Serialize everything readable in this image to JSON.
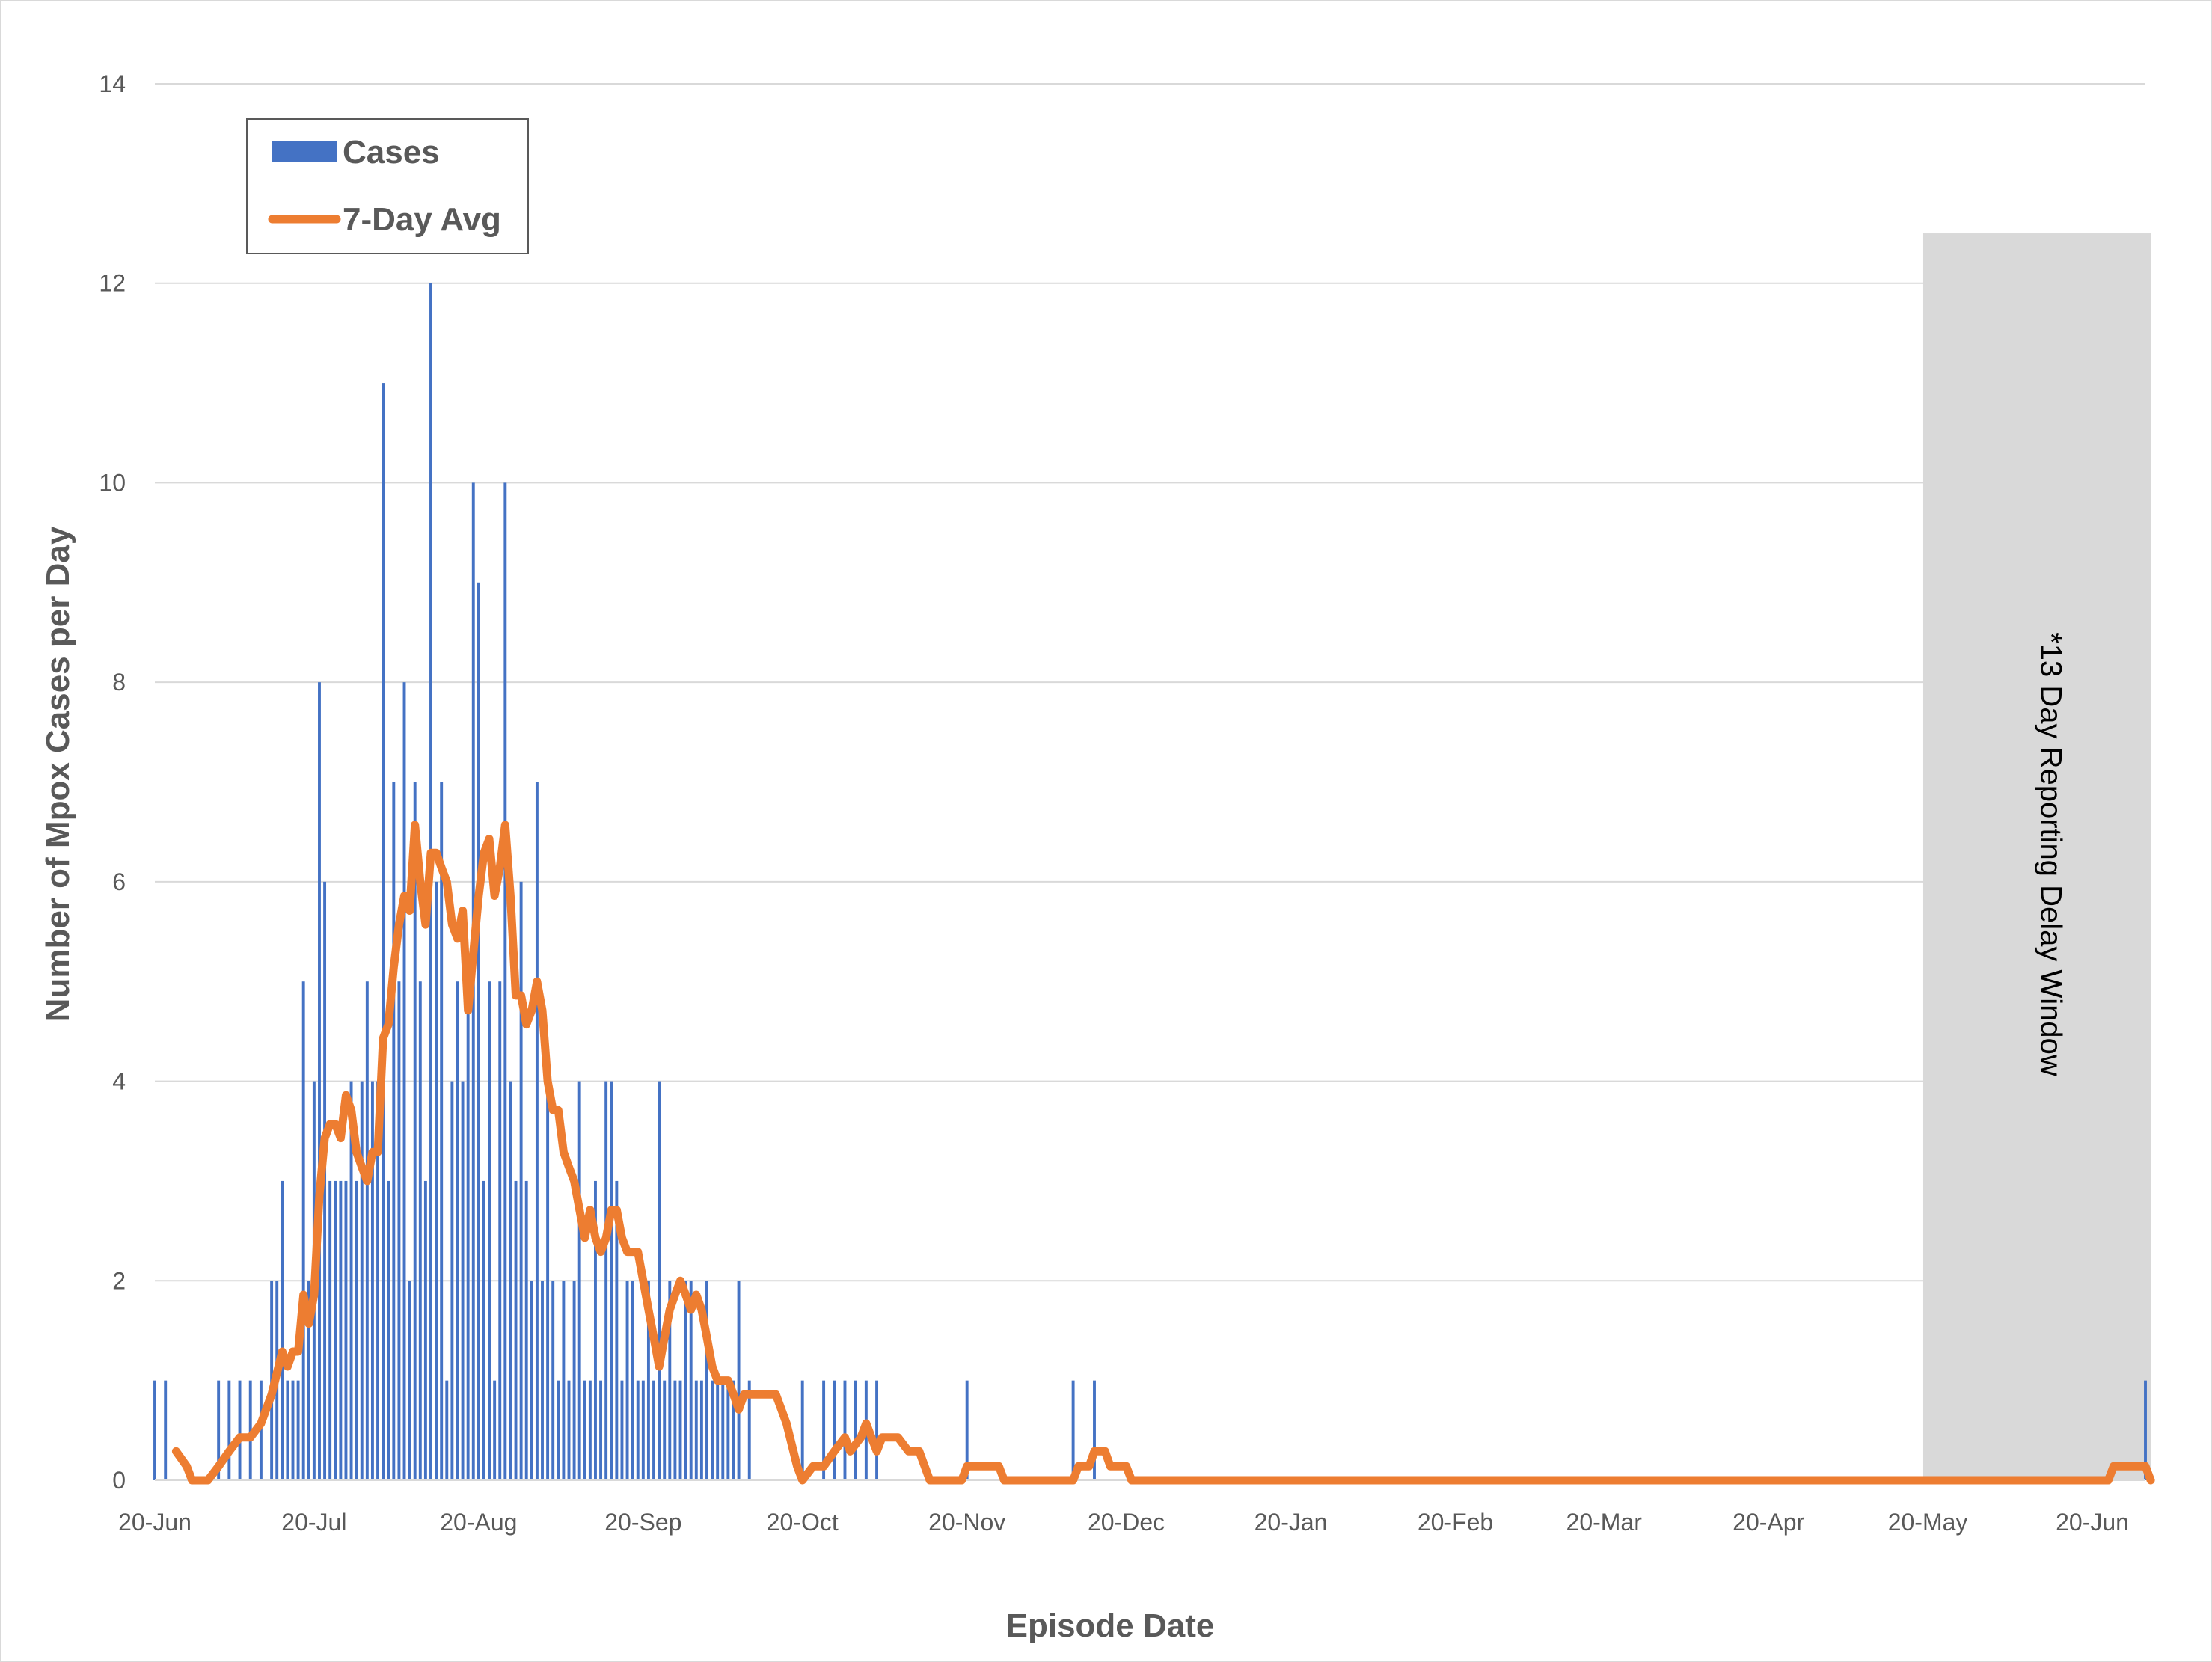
{
  "chart_data": {
    "type": "bar",
    "title": "",
    "xlabel": "Episode Date",
    "ylabel": "Number of Mpox Cases per Day",
    "ylim": [
      0,
      14
    ],
    "yticks": [
      0,
      2,
      4,
      6,
      8,
      10,
      12,
      14
    ],
    "xlim": [
      "2022-06-20",
      "2023-06-30"
    ],
    "xticks": [
      {
        "date": "2022-06-20",
        "label": "20-Jun"
      },
      {
        "date": "2022-07-20",
        "label": "20-Jul"
      },
      {
        "date": "2022-08-20",
        "label": "20-Aug"
      },
      {
        "date": "2022-09-20",
        "label": "20-Sep"
      },
      {
        "date": "2022-10-20",
        "label": "20-Oct"
      },
      {
        "date": "2022-11-20",
        "label": "20-Nov"
      },
      {
        "date": "2022-12-20",
        "label": "20-Dec"
      },
      {
        "date": "2023-01-20",
        "label": "20-Jan"
      },
      {
        "date": "2023-02-20",
        "label": "20-Feb"
      },
      {
        "date": "2023-03-20",
        "label": "20-Mar"
      },
      {
        "date": "2023-04-20",
        "label": "20-Apr"
      },
      {
        "date": "2023-05-20",
        "label": "20-May"
      },
      {
        "date": "2023-06-20",
        "label": "20-Jun"
      }
    ],
    "grid": true,
    "legend_position": "top-left",
    "colors": {
      "cases": "#4472C4",
      "avg": "#ED7D31",
      "band": "#D9D9D9",
      "grid": "#D9D9D9",
      "text": "#595959"
    },
    "series": [
      {
        "name": "Cases",
        "type": "bar",
        "points": [
          [
            "2022-06-20",
            1
          ],
          [
            "2022-06-22",
            1
          ],
          [
            "2022-07-02",
            1
          ],
          [
            "2022-07-04",
            1
          ],
          [
            "2022-07-06",
            1
          ],
          [
            "2022-07-08",
            1
          ],
          [
            "2022-07-10",
            1
          ],
          [
            "2022-07-12",
            2
          ],
          [
            "2022-07-13",
            2
          ],
          [
            "2022-07-14",
            3
          ],
          [
            "2022-07-15",
            1
          ],
          [
            "2022-07-16",
            1
          ],
          [
            "2022-07-17",
            1
          ],
          [
            "2022-07-18",
            5
          ],
          [
            "2022-07-19",
            2
          ],
          [
            "2022-07-20",
            4
          ],
          [
            "2022-07-21",
            8
          ],
          [
            "2022-07-22",
            6
          ],
          [
            "2022-07-23",
            3
          ],
          [
            "2022-07-24",
            3
          ],
          [
            "2022-07-25",
            3
          ],
          [
            "2022-07-26",
            3
          ],
          [
            "2022-07-27",
            4
          ],
          [
            "2022-07-28",
            3
          ],
          [
            "2022-07-29",
            4
          ],
          [
            "2022-07-30",
            5
          ],
          [
            "2022-07-31",
            4
          ],
          [
            "2022-08-01",
            4
          ],
          [
            "2022-08-02",
            11
          ],
          [
            "2022-08-03",
            3
          ],
          [
            "2022-08-04",
            7
          ],
          [
            "2022-08-05",
            5
          ],
          [
            "2022-08-06",
            8
          ],
          [
            "2022-08-07",
            2
          ],
          [
            "2022-08-08",
            7
          ],
          [
            "2022-08-09",
            5
          ],
          [
            "2022-08-10",
            3
          ],
          [
            "2022-08-11",
            12
          ],
          [
            "2022-08-12",
            6
          ],
          [
            "2022-08-13",
            7
          ],
          [
            "2022-08-14",
            1
          ],
          [
            "2022-08-15",
            4
          ],
          [
            "2022-08-16",
            5
          ],
          [
            "2022-08-17",
            4
          ],
          [
            "2022-08-18",
            5
          ],
          [
            "2022-08-19",
            10
          ],
          [
            "2022-08-20",
            9
          ],
          [
            "2022-08-21",
            3
          ],
          [
            "2022-08-22",
            5
          ],
          [
            "2022-08-23",
            1
          ],
          [
            "2022-08-24",
            5
          ],
          [
            "2022-08-25",
            10
          ],
          [
            "2022-08-26",
            4
          ],
          [
            "2022-08-27",
            3
          ],
          [
            "2022-08-28",
            6
          ],
          [
            "2022-08-29",
            3
          ],
          [
            "2022-08-30",
            2
          ],
          [
            "2022-08-31",
            7
          ],
          [
            "2022-09-01",
            2
          ],
          [
            "2022-09-02",
            4
          ],
          [
            "2022-09-03",
            2
          ],
          [
            "2022-09-04",
            1
          ],
          [
            "2022-09-05",
            2
          ],
          [
            "2022-09-06",
            1
          ],
          [
            "2022-09-07",
            2
          ],
          [
            "2022-09-08",
            4
          ],
          [
            "2022-09-09",
            1
          ],
          [
            "2022-09-10",
            1
          ],
          [
            "2022-09-11",
            3
          ],
          [
            "2022-09-12",
            1
          ],
          [
            "2022-09-13",
            4
          ],
          [
            "2022-09-14",
            4
          ],
          [
            "2022-09-15",
            3
          ],
          [
            "2022-09-16",
            1
          ],
          [
            "2022-09-17",
            2
          ],
          [
            "2022-09-18",
            2
          ],
          [
            "2022-09-19",
            1
          ],
          [
            "2022-09-20",
            1
          ],
          [
            "2022-09-21",
            2
          ],
          [
            "2022-09-22",
            1
          ],
          [
            "2022-09-23",
            4
          ],
          [
            "2022-09-24",
            1
          ],
          [
            "2022-09-25",
            2
          ],
          [
            "2022-09-26",
            1
          ],
          [
            "2022-09-27",
            1
          ],
          [
            "2022-09-28",
            2
          ],
          [
            "2022-09-29",
            2
          ],
          [
            "2022-09-30",
            1
          ],
          [
            "2022-10-01",
            1
          ],
          [
            "2022-10-02",
            2
          ],
          [
            "2022-10-03",
            1
          ],
          [
            "2022-10-04",
            1
          ],
          [
            "2022-10-05",
            1
          ],
          [
            "2022-10-06",
            1
          ],
          [
            "2022-10-07",
            1
          ],
          [
            "2022-10-08",
            2
          ],
          [
            "2022-10-10",
            1
          ],
          [
            "2022-10-20",
            1
          ],
          [
            "2022-10-24",
            1
          ],
          [
            "2022-10-26",
            1
          ],
          [
            "2022-10-28",
            1
          ],
          [
            "2022-10-30",
            1
          ],
          [
            "2022-11-01",
            1
          ],
          [
            "2022-11-03",
            1
          ],
          [
            "2022-11-20",
            1
          ],
          [
            "2022-12-10",
            1
          ],
          [
            "2022-12-14",
            1
          ],
          [
            "2023-06-30",
            1
          ]
        ]
      },
      {
        "name": "7-Day Avg",
        "type": "line",
        "points": [
          [
            "2022-06-24",
            0.29
          ],
          [
            "2022-06-26",
            0.14
          ],
          [
            "2022-06-27",
            0.0
          ],
          [
            "2022-06-30",
            0.0
          ],
          [
            "2022-07-02",
            0.14
          ],
          [
            "2022-07-04",
            0.29
          ],
          [
            "2022-07-06",
            0.43
          ],
          [
            "2022-07-08",
            0.43
          ],
          [
            "2022-07-10",
            0.57
          ],
          [
            "2022-07-12",
            0.86
          ],
          [
            "2022-07-14",
            1.29
          ],
          [
            "2022-07-15",
            1.14
          ],
          [
            "2022-07-16",
            1.29
          ],
          [
            "2022-07-17",
            1.29
          ],
          [
            "2022-07-18",
            1.86
          ],
          [
            "2022-07-19",
            1.57
          ],
          [
            "2022-07-20",
            1.86
          ],
          [
            "2022-07-21",
            2.86
          ],
          [
            "2022-07-22",
            3.43
          ],
          [
            "2022-07-23",
            3.57
          ],
          [
            "2022-07-24",
            3.57
          ],
          [
            "2022-07-25",
            3.43
          ],
          [
            "2022-07-26",
            3.86
          ],
          [
            "2022-07-27",
            3.71
          ],
          [
            "2022-07-28",
            3.29
          ],
          [
            "2022-07-29",
            3.14
          ],
          [
            "2022-07-30",
            3.0
          ],
          [
            "2022-07-31",
            3.29
          ],
          [
            "2022-08-01",
            3.29
          ],
          [
            "2022-08-02",
            4.43
          ],
          [
            "2022-08-03",
            4.57
          ],
          [
            "2022-08-04",
            5.14
          ],
          [
            "2022-08-05",
            5.57
          ],
          [
            "2022-08-06",
            5.86
          ],
          [
            "2022-08-07",
            5.71
          ],
          [
            "2022-08-08",
            6.57
          ],
          [
            "2022-08-09",
            6.0
          ],
          [
            "2022-08-10",
            5.57
          ],
          [
            "2022-08-11",
            6.29
          ],
          [
            "2022-08-12",
            6.29
          ],
          [
            "2022-08-13",
            6.14
          ],
          [
            "2022-08-14",
            6.0
          ],
          [
            "2022-08-15",
            5.57
          ],
          [
            "2022-08-16",
            5.43
          ],
          [
            "2022-08-17",
            5.71
          ],
          [
            "2022-08-18",
            4.71
          ],
          [
            "2022-08-19",
            5.29
          ],
          [
            "2022-08-20",
            5.86
          ],
          [
            "2022-08-21",
            6.29
          ],
          [
            "2022-08-22",
            6.43
          ],
          [
            "2022-08-23",
            5.86
          ],
          [
            "2022-08-24",
            6.14
          ],
          [
            "2022-08-25",
            6.57
          ],
          [
            "2022-08-26",
            5.86
          ],
          [
            "2022-08-27",
            4.86
          ],
          [
            "2022-08-28",
            4.86
          ],
          [
            "2022-08-29",
            4.57
          ],
          [
            "2022-08-30",
            4.71
          ],
          [
            "2022-08-31",
            5.0
          ],
          [
            "2022-09-01",
            4.71
          ],
          [
            "2022-09-02",
            4.0
          ],
          [
            "2022-09-03",
            3.71
          ],
          [
            "2022-09-04",
            3.71
          ],
          [
            "2022-09-05",
            3.29
          ],
          [
            "2022-09-06",
            3.14
          ],
          [
            "2022-09-07",
            3.0
          ],
          [
            "2022-09-08",
            2.71
          ],
          [
            "2022-09-09",
            2.43
          ],
          [
            "2022-09-10",
            2.71
          ],
          [
            "2022-09-11",
            2.43
          ],
          [
            "2022-09-12",
            2.29
          ],
          [
            "2022-09-13",
            2.43
          ],
          [
            "2022-09-14",
            2.71
          ],
          [
            "2022-09-15",
            2.71
          ],
          [
            "2022-09-16",
            2.43
          ],
          [
            "2022-09-17",
            2.29
          ],
          [
            "2022-09-18",
            2.29
          ],
          [
            "2022-09-19",
            2.29
          ],
          [
            "2022-09-20",
            2.0
          ],
          [
            "2022-09-21",
            1.71
          ],
          [
            "2022-09-22",
            1.43
          ],
          [
            "2022-09-23",
            1.14
          ],
          [
            "2022-09-24",
            1.43
          ],
          [
            "2022-09-25",
            1.71
          ],
          [
            "2022-09-26",
            1.86
          ],
          [
            "2022-09-27",
            2.0
          ],
          [
            "2022-09-28",
            1.86
          ],
          [
            "2022-09-29",
            1.71
          ],
          [
            "2022-09-30",
            1.86
          ],
          [
            "2022-10-01",
            1.71
          ],
          [
            "2022-10-02",
            1.43
          ],
          [
            "2022-10-03",
            1.14
          ],
          [
            "2022-10-04",
            1.0
          ],
          [
            "2022-10-05",
            1.0
          ],
          [
            "2022-10-06",
            1.0
          ],
          [
            "2022-10-07",
            0.86
          ],
          [
            "2022-10-08",
            0.71
          ],
          [
            "2022-10-09",
            0.86
          ],
          [
            "2022-10-10",
            0.86
          ],
          [
            "2022-10-13",
            0.86
          ],
          [
            "2022-10-15",
            0.86
          ],
          [
            "2022-10-17",
            0.57
          ],
          [
            "2022-10-19",
            0.14
          ],
          [
            "2022-10-20",
            0.0
          ],
          [
            "2022-10-22",
            0.14
          ],
          [
            "2022-10-24",
            0.14
          ],
          [
            "2022-10-26",
            0.29
          ],
          [
            "2022-10-28",
            0.43
          ],
          [
            "2022-10-29",
            0.29
          ],
          [
            "2022-10-31",
            0.43
          ],
          [
            "2022-11-01",
            0.57
          ],
          [
            "2022-11-02",
            0.43
          ],
          [
            "2022-11-03",
            0.29
          ],
          [
            "2022-11-04",
            0.43
          ],
          [
            "2022-11-07",
            0.43
          ],
          [
            "2022-11-09",
            0.29
          ],
          [
            "2022-11-11",
            0.29
          ],
          [
            "2022-11-13",
            0.0
          ],
          [
            "2022-11-19",
            0.0
          ],
          [
            "2022-11-20",
            0.14
          ],
          [
            "2022-11-26",
            0.14
          ],
          [
            "2022-11-27",
            0.0
          ],
          [
            "2022-12-10",
            0.0
          ],
          [
            "2022-12-11",
            0.14
          ],
          [
            "2022-12-13",
            0.14
          ],
          [
            "2022-12-14",
            0.29
          ],
          [
            "2022-12-16",
            0.29
          ],
          [
            "2022-12-17",
            0.14
          ],
          [
            "2022-12-20",
            0.14
          ],
          [
            "2022-12-21",
            0.0
          ],
          [
            "2023-06-23",
            0.0
          ],
          [
            "2023-06-24",
            0.14
          ],
          [
            "2023-06-30",
            0.14
          ],
          [
            "2023-07-01",
            0.0
          ]
        ]
      }
    ],
    "annotations": [
      {
        "text": "*13 Day Reporting Delay Window",
        "type": "shaded-band",
        "from": "2023-05-19",
        "to": "2023-07-01",
        "ymax": 12.5,
        "orientation": "vertical"
      }
    ]
  }
}
